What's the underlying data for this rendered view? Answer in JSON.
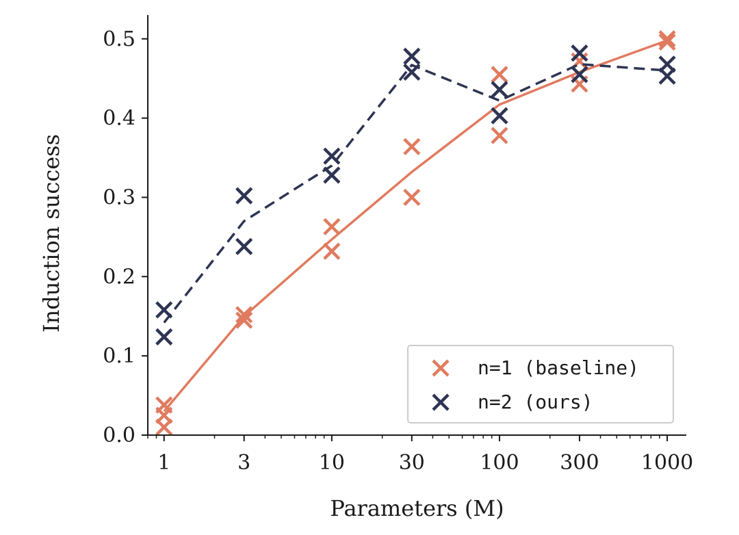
{
  "chart_data": {
    "type": "scatter",
    "xscale": "log",
    "x_ticks": [
      1,
      3,
      10,
      30,
      100,
      300,
      1000
    ],
    "x_tick_labels": [
      "1",
      "3",
      "10",
      "30",
      "100",
      "300",
      "1000"
    ],
    "xlim": [
      0.8,
      1300
    ],
    "ylim": [
      0,
      0.53
    ],
    "y_ticks": [
      0.0,
      0.1,
      0.2,
      0.3,
      0.4,
      0.5
    ],
    "y_tick_labels": [
      "0.0",
      "0.1",
      "0.2",
      "0.3",
      "0.4",
      "0.5"
    ],
    "xlabel": "Parameters (M)",
    "ylabel": "Induction success",
    "grid": false,
    "legend_position": "bottom-right",
    "series": [
      {
        "name": "n=1 (baseline)",
        "color": "#E07B5F",
        "line_style": "solid",
        "marker": "x",
        "line": [
          {
            "x": 1,
            "y": 0.03
          },
          {
            "x": 3,
            "y": 0.15
          },
          {
            "x": 10,
            "y": 0.247
          },
          {
            "x": 30,
            "y": 0.332
          },
          {
            "x": 100,
            "y": 0.417
          },
          {
            "x": 300,
            "y": 0.458
          },
          {
            "x": 1000,
            "y": 0.498
          }
        ],
        "points": [
          {
            "x": 1,
            "y": 0.038
          },
          {
            "x": 1,
            "y": 0.025
          },
          {
            "x": 1,
            "y": 0.01
          },
          {
            "x": 3,
            "y": 0.152
          },
          {
            "x": 3,
            "y": 0.145
          },
          {
            "x": 10,
            "y": 0.263
          },
          {
            "x": 10,
            "y": 0.232
          },
          {
            "x": 30,
            "y": 0.364
          },
          {
            "x": 30,
            "y": 0.3
          },
          {
            "x": 100,
            "y": 0.455
          },
          {
            "x": 100,
            "y": 0.378
          },
          {
            "x": 300,
            "y": 0.472
          },
          {
            "x": 300,
            "y": 0.443
          },
          {
            "x": 1000,
            "y": 0.5
          },
          {
            "x": 1000,
            "y": 0.496
          }
        ]
      },
      {
        "name": "n=2 (ours)",
        "color": "#2E3452",
        "line_style": "dashed",
        "marker": "x",
        "line": [
          {
            "x": 1,
            "y": 0.142
          },
          {
            "x": 3,
            "y": 0.27
          },
          {
            "x": 10,
            "y": 0.34
          },
          {
            "x": 30,
            "y": 0.467
          },
          {
            "x": 100,
            "y": 0.422
          },
          {
            "x": 300,
            "y": 0.468
          },
          {
            "x": 1000,
            "y": 0.46
          }
        ],
        "points": [
          {
            "x": 1,
            "y": 0.158
          },
          {
            "x": 1,
            "y": 0.124
          },
          {
            "x": 3,
            "y": 0.302
          },
          {
            "x": 3,
            "y": 0.238
          },
          {
            "x": 10,
            "y": 0.352
          },
          {
            "x": 10,
            "y": 0.328
          },
          {
            "x": 30,
            "y": 0.478
          },
          {
            "x": 30,
            "y": 0.458
          },
          {
            "x": 100,
            "y": 0.436
          },
          {
            "x": 100,
            "y": 0.403
          },
          {
            "x": 300,
            "y": 0.482
          },
          {
            "x": 300,
            "y": 0.455
          },
          {
            "x": 1000,
            "y": 0.468
          },
          {
            "x": 1000,
            "y": 0.453
          }
        ]
      }
    ]
  }
}
